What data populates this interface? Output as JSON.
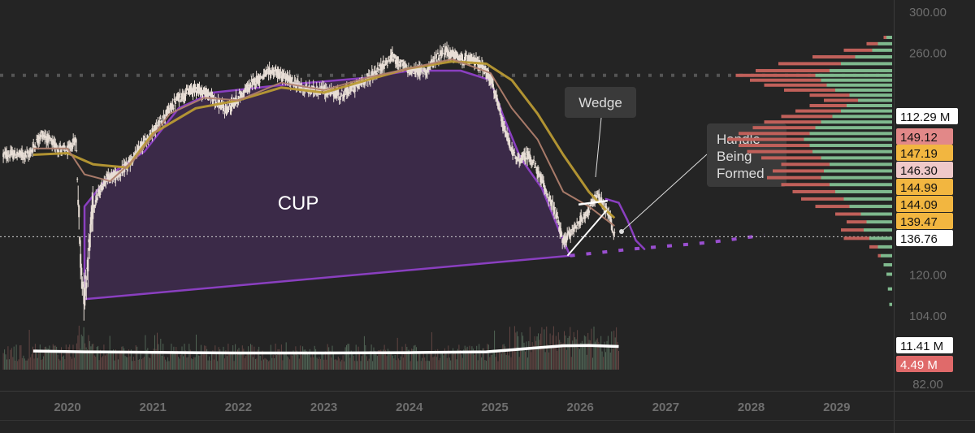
{
  "chart_data": {
    "type": "candlestick",
    "title": "",
    "x_axis": {
      "labels": [
        "2020",
        "2021",
        "2022",
        "2023",
        "2024",
        "2025",
        "2026",
        "2027",
        "2028",
        "2029"
      ],
      "range": [
        2019.6,
        2029.85
      ]
    },
    "y_axis": {
      "scale": "log",
      "ticks": [
        300,
        260,
        120,
        104,
        82
      ],
      "tick_labels": [
        "300.00",
        "260.00",
        "120.00",
        "104.00",
        "82.00"
      ],
      "range": [
        82,
        305
      ]
    },
    "price_series": [
      {
        "x": 2019.55,
        "y": 182
      },
      {
        "x": 2019.7,
        "y": 196
      },
      {
        "x": 2019.85,
        "y": 188
      },
      {
        "x": 2020.0,
        "y": 184
      },
      {
        "x": 2020.1,
        "y": 192
      },
      {
        "x": 2020.15,
        "y": 128
      },
      {
        "x": 2020.2,
        "y": 110
      },
      {
        "x": 2020.3,
        "y": 152
      },
      {
        "x": 2020.45,
        "y": 168
      },
      {
        "x": 2020.6,
        "y": 170
      },
      {
        "x": 2020.75,
        "y": 178
      },
      {
        "x": 2020.9,
        "y": 190
      },
      {
        "x": 2021.1,
        "y": 205
      },
      {
        "x": 2021.3,
        "y": 222
      },
      {
        "x": 2021.5,
        "y": 230
      },
      {
        "x": 2021.7,
        "y": 222
      },
      {
        "x": 2021.85,
        "y": 212
      },
      {
        "x": 2022.0,
        "y": 222
      },
      {
        "x": 2022.2,
        "y": 236
      },
      {
        "x": 2022.4,
        "y": 244
      },
      {
        "x": 2022.6,
        "y": 236
      },
      {
        "x": 2022.8,
        "y": 228
      },
      {
        "x": 2023.0,
        "y": 228
      },
      {
        "x": 2023.2,
        "y": 224
      },
      {
        "x": 2023.4,
        "y": 232
      },
      {
        "x": 2023.6,
        "y": 242
      },
      {
        "x": 2023.8,
        "y": 256
      },
      {
        "x": 2024.0,
        "y": 244
      },
      {
        "x": 2024.2,
        "y": 244
      },
      {
        "x": 2024.4,
        "y": 262
      },
      {
        "x": 2024.6,
        "y": 254
      },
      {
        "x": 2024.8,
        "y": 252
      },
      {
        "x": 2024.95,
        "y": 238
      },
      {
        "x": 2025.1,
        "y": 200
      },
      {
        "x": 2025.25,
        "y": 178
      },
      {
        "x": 2025.4,
        "y": 182
      },
      {
        "x": 2025.55,
        "y": 166
      },
      {
        "x": 2025.7,
        "y": 150
      },
      {
        "x": 2025.8,
        "y": 134
      },
      {
        "x": 2025.95,
        "y": 142
      },
      {
        "x": 2026.1,
        "y": 150
      },
      {
        "x": 2026.2,
        "y": 158
      },
      {
        "x": 2026.3,
        "y": 150
      },
      {
        "x": 2026.35,
        "y": 146
      },
      {
        "x": 2026.4,
        "y": 136.76
      }
    ],
    "moving_averages": [
      {
        "color": "#b99a34",
        "points": [
          {
            "x": 2019.6,
            "y": 182
          },
          {
            "x": 2020.0,
            "y": 183
          },
          {
            "x": 2020.3,
            "y": 176
          },
          {
            "x": 2020.7,
            "y": 174
          },
          {
            "x": 2021.0,
            "y": 196
          },
          {
            "x": 2021.5,
            "y": 214
          },
          {
            "x": 2022.0,
            "y": 220
          },
          {
            "x": 2022.5,
            "y": 230
          },
          {
            "x": 2023.0,
            "y": 226
          },
          {
            "x": 2023.5,
            "y": 236
          },
          {
            "x": 2024.0,
            "y": 246
          },
          {
            "x": 2024.5,
            "y": 252
          },
          {
            "x": 2024.9,
            "y": 250
          },
          {
            "x": 2025.2,
            "y": 236
          },
          {
            "x": 2025.5,
            "y": 210
          },
          {
            "x": 2025.8,
            "y": 182
          },
          {
            "x": 2026.1,
            "y": 160
          },
          {
            "x": 2026.3,
            "y": 150
          },
          {
            "x": 2026.4,
            "y": 146
          }
        ]
      },
      {
        "color": "#b0806e",
        "points": [
          {
            "x": 2019.6,
            "y": 186
          },
          {
            "x": 2020.0,
            "y": 186
          },
          {
            "x": 2020.2,
            "y": 170
          },
          {
            "x": 2020.5,
            "y": 166
          },
          {
            "x": 2020.8,
            "y": 180
          },
          {
            "x": 2021.2,
            "y": 210
          },
          {
            "x": 2021.6,
            "y": 222
          },
          {
            "x": 2022.0,
            "y": 220
          },
          {
            "x": 2022.5,
            "y": 234
          },
          {
            "x": 2023.0,
            "y": 228
          },
          {
            "x": 2023.5,
            "y": 238
          },
          {
            "x": 2024.0,
            "y": 246
          },
          {
            "x": 2024.5,
            "y": 254
          },
          {
            "x": 2024.95,
            "y": 242
          },
          {
            "x": 2025.2,
            "y": 214
          },
          {
            "x": 2025.5,
            "y": 192
          },
          {
            "x": 2025.8,
            "y": 160
          },
          {
            "x": 2026.1,
            "y": 152
          },
          {
            "x": 2026.4,
            "y": 142
          }
        ]
      }
    ],
    "cup": {
      "outline": [
        {
          "x": 2020.2,
          "y": 110
        },
        {
          "x": 2020.2,
          "y": 152
        },
        {
          "x": 2020.5,
          "y": 170
        },
        {
          "x": 2020.9,
          "y": 184
        },
        {
          "x": 2021.3,
          "y": 214
        },
        {
          "x": 2021.7,
          "y": 226
        },
        {
          "x": 2022.5,
          "y": 232
        },
        {
          "x": 2023.5,
          "y": 238
        },
        {
          "x": 2024.0,
          "y": 244
        },
        {
          "x": 2024.6,
          "y": 244
        },
        {
          "x": 2024.95,
          "y": 236
        },
        {
          "x": 2025.1,
          "y": 208
        },
        {
          "x": 2025.3,
          "y": 180
        },
        {
          "x": 2025.55,
          "y": 162
        },
        {
          "x": 2025.75,
          "y": 140
        },
        {
          "x": 2025.88,
          "y": 128
        }
      ],
      "label": "CUP",
      "fill": "#3b2a48",
      "stroke": "#8a3fc0"
    },
    "handle_curve": [
      {
        "x": 2026.3,
        "y": 156
      },
      {
        "x": 2026.45,
        "y": 154
      },
      {
        "x": 2026.55,
        "y": 145
      },
      {
        "x": 2026.65,
        "y": 135
      },
      {
        "x": 2026.75,
        "y": 131
      }
    ],
    "projection_dotted": [
      {
        "x": 2025.88,
        "y": 128
      },
      {
        "x": 2026.6,
        "y": 131
      },
      {
        "x": 2027.5,
        "y": 134
      },
      {
        "x": 2028.15,
        "y": 137.5
      }
    ],
    "current_price_line": 136.76,
    "resistance_dotted_line": 240,
    "annotations": [
      {
        "text": "Wedge"
      },
      {
        "text": "Handle\nBeing\nFormed"
      }
    ],
    "price_labels": [
      {
        "text": "112.29 M",
        "color": "#ffffff",
        "text_color": "#111111"
      },
      {
        "text": "149.12",
        "color": "#e28888",
        "text_color": "#111111"
      },
      {
        "text": "147.19",
        "color": "#f2b640",
        "text_color": "#111111"
      },
      {
        "text": "146.30",
        "color": "#efc9c9",
        "text_color": "#111111"
      },
      {
        "text": "144.99",
        "color": "#f2b640",
        "text_color": "#111111"
      },
      {
        "text": "144.09",
        "color": "#f2b640",
        "text_color": "#111111"
      },
      {
        "text": "139.47",
        "color": "#f2b640",
        "text_color": "#111111"
      },
      {
        "text": "136.76",
        "color": "#ffffff",
        "text_color": "#111111"
      },
      {
        "text": "11.41 M",
        "color": "#ffffff",
        "text_color": "#111111"
      },
      {
        "text": "4.49 M",
        "color": "#e06a6a",
        "text_color": "#ffffff"
      }
    ],
    "volume_profile": {
      "bins": [
        {
          "price": 274,
          "buy": 4,
          "sell": 2
        },
        {
          "price": 268,
          "buy": 10,
          "sell": 8
        },
        {
          "price": 262,
          "buy": 14,
          "sell": 20
        },
        {
          "price": 256,
          "buy": 26,
          "sell": 30
        },
        {
          "price": 250,
          "buy": 36,
          "sell": 44
        },
        {
          "price": 244,
          "buy": 44,
          "sell": 52
        },
        {
          "price": 240,
          "buy": 54,
          "sell": 56
        },
        {
          "price": 236,
          "buy": 50,
          "sell": 50
        },
        {
          "price": 232,
          "buy": 46,
          "sell": 44
        },
        {
          "price": 228,
          "buy": 40,
          "sell": 36
        },
        {
          "price": 224,
          "buy": 30,
          "sell": 28
        },
        {
          "price": 220,
          "buy": 24,
          "sell": 24
        },
        {
          "price": 216,
          "buy": 32,
          "sell": 26
        },
        {
          "price": 212,
          "buy": 36,
          "sell": 32
        },
        {
          "price": 208,
          "buy": 42,
          "sell": 36
        },
        {
          "price": 204,
          "buy": 50,
          "sell": 40
        },
        {
          "price": 200,
          "buy": 54,
          "sell": 44
        },
        {
          "price": 196,
          "buy": 58,
          "sell": 50
        },
        {
          "price": 192,
          "buy": 62,
          "sell": 54
        },
        {
          "price": 188,
          "buy": 58,
          "sell": 50
        },
        {
          "price": 184,
          "buy": 56,
          "sell": 46
        },
        {
          "price": 180,
          "buy": 50,
          "sell": 42
        },
        {
          "price": 176,
          "buy": 44,
          "sell": 34
        },
        {
          "price": 172,
          "buy": 48,
          "sell": 36
        },
        {
          "price": 168,
          "buy": 50,
          "sell": 38
        },
        {
          "price": 164,
          "buy": 44,
          "sell": 34
        },
        {
          "price": 160,
          "buy": 40,
          "sell": 30
        },
        {
          "price": 156,
          "buy": 34,
          "sell": 30
        },
        {
          "price": 152,
          "buy": 30,
          "sell": 24
        },
        {
          "price": 148,
          "buy": 22,
          "sell": 18
        },
        {
          "price": 144,
          "buy": 18,
          "sell": 14
        },
        {
          "price": 140,
          "buy": 20,
          "sell": 16
        },
        {
          "price": 136,
          "buy": 16,
          "sell": 18
        },
        {
          "price": 132,
          "buy": 10,
          "sell": 6
        },
        {
          "price": 128,
          "buy": 8,
          "sell": 2
        },
        {
          "price": 124,
          "buy": 6,
          "sell": 0
        },
        {
          "price": 120,
          "buy": 4,
          "sell": 0
        },
        {
          "price": 114,
          "buy": 3,
          "sell": 0
        },
        {
          "price": 108,
          "buy": 2,
          "sell": 0
        }
      ],
      "buy_color": "#7fb98e",
      "sell_color": "#c0605a"
    },
    "volume_avg_line": [
      {
        "x": 2019.6,
        "y": 0.45
      },
      {
        "x": 2020.2,
        "y": 0.42
      },
      {
        "x": 2021.0,
        "y": 0.4
      },
      {
        "x": 2022.0,
        "y": 0.38
      },
      {
        "x": 2023.0,
        "y": 0.38
      },
      {
        "x": 2024.0,
        "y": 0.39
      },
      {
        "x": 2024.9,
        "y": 0.42
      },
      {
        "x": 2025.4,
        "y": 0.55
      },
      {
        "x": 2025.8,
        "y": 0.65
      },
      {
        "x": 2026.1,
        "y": 0.66
      },
      {
        "x": 2026.45,
        "y": 0.62
      }
    ],
    "colors": {
      "background": "#242424",
      "grid": "#3a3a3a",
      "axis_text": "#6e6e6e",
      "candle": "#e8ded6",
      "cup_fill": "#3b2a48",
      "cup_stroke": "#8a3fc0",
      "annotation_bg": "#3a3a3a",
      "annotation_text": "#dddddd"
    }
  }
}
